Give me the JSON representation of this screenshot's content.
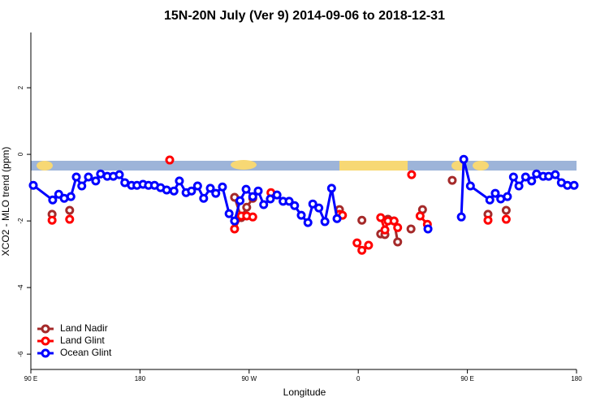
{
  "chart_data": {
    "type": "line",
    "title": "15N-20N July (Ver 9)   2014-09-06 to 2018-12-31",
    "xlabel": "Longitude",
    "ylabel": "XCO2 - MLO trend (ppm)",
    "xlim": [
      90,
      540
    ],
    "ylim": [
      -6.46,
      3.66
    ],
    "xticks": [
      {
        "value": 90,
        "label": "90 E"
      },
      180,
      {
        "value": 270,
        "label": "90 W"
      },
      {
        "value": 360,
        "label": "0"
      },
      {
        "value": 450,
        "label": "90 E"
      },
      {
        "value": 540,
        "label": "180"
      }
    ],
    "yticks": [
      -6,
      -4,
      -2,
      0,
      2
    ],
    "legend": "bottomleft",
    "series": [
      {
        "name": "Land Nadir",
        "color": "#a52a2a",
        "x": [
          107.5,
          null,
          122,
          null,
          258,
          263.5,
          268,
          273,
          null,
          344.5,
          null,
          363,
          null,
          378.5,
          382,
          384.5,
          389.5,
          392.5,
          null,
          403.5,
          null,
          413,
          null,
          437.5,
          null,
          467,
          null,
          482
        ],
        "values": [
          -1.8,
          null,
          -1.68,
          null,
          -1.29,
          -1.9,
          -1.59,
          -1.32,
          null,
          -1.66,
          null,
          -1.98,
          null,
          -2.39,
          -2.41,
          -1.95,
          -2.0,
          -2.63,
          null,
          -2.24,
          null,
          -1.66,
          null,
          -0.78,
          null,
          -1.8,
          null,
          -1.68
        ]
      },
      {
        "name": "Land Glint",
        "color": "#ff0000",
        "x": [
          107.5,
          null,
          122,
          null,
          204.5,
          null,
          258,
          263.5,
          268,
          273,
          null,
          288,
          null,
          344.5,
          347,
          null,
          359,
          363,
          368.5,
          null,
          378.5,
          382,
          384.5,
          389.5,
          392.5,
          null,
          404,
          null,
          411,
          417,
          null,
          467,
          null,
          482
        ],
        "values": [
          -1.98,
          null,
          -1.95,
          null,
          -0.17,
          null,
          -2.24,
          -1.85,
          -1.85,
          -1.88,
          null,
          -1.15,
          null,
          -1.8,
          -1.83,
          null,
          -2.66,
          -2.88,
          -2.73,
          null,
          -1.9,
          -2.27,
          -2.0,
          -2.0,
          -2.2,
          null,
          -0.61,
          null,
          -1.85,
          -2.1,
          null,
          -1.98,
          null,
          -1.95
        ]
      },
      {
        "name": "Ocean Glint",
        "color": "#0000ff",
        "x": [
          92,
          108,
          113,
          117.5,
          123,
          127.5,
          132,
          137.5,
          143.5,
          147.5,
          153,
          158,
          163,
          167.5,
          173,
          177.5,
          182.5,
          187,
          192,
          197,
          202,
          208,
          212.5,
          218,
          222.5,
          227.5,
          232.5,
          238,
          242.5,
          248,
          253.5,
          258,
          262.5,
          267.5,
          273,
          277.5,
          282,
          287.5,
          293,
          298,
          303,
          307.5,
          313,
          318.5,
          322.5,
          327.5,
          332.5,
          338,
          342.5,
          null,
          417.5,
          null,
          445,
          447,
          452.5,
          468.5,
          473,
          477.5,
          483,
          488,
          492.5,
          498,
          503,
          507,
          512.5,
          517,
          522.5,
          527.5,
          532.5,
          538
        ],
        "values": [
          -0.93,
          -1.37,
          -1.2,
          -1.32,
          -1.27,
          -0.68,
          -0.95,
          -0.68,
          -0.8,
          -0.59,
          -0.66,
          -0.66,
          -0.61,
          -0.85,
          -0.93,
          -0.93,
          -0.9,
          -0.93,
          -0.93,
          -1.0,
          -1.07,
          -1.1,
          -0.8,
          -1.15,
          -1.1,
          -0.95,
          -1.32,
          -1.02,
          -1.17,
          -0.98,
          -1.78,
          -2.0,
          -1.39,
          -1.05,
          -1.27,
          -1.1,
          -1.51,
          -1.34,
          -1.22,
          -1.41,
          -1.41,
          -1.54,
          -1.83,
          -2.05,
          -1.49,
          -1.61,
          -2.02,
          -1.02,
          -1.93,
          null,
          -2.24,
          null,
          -1.88,
          -0.15,
          -0.95,
          -1.37,
          -1.17,
          -1.34,
          -1.27,
          -0.68,
          -0.95,
          -0.68,
          -0.8,
          -0.59,
          -0.66,
          -0.66,
          -0.61,
          -0.85,
          -0.93,
          -0.93
        ]
      }
    ]
  }
}
